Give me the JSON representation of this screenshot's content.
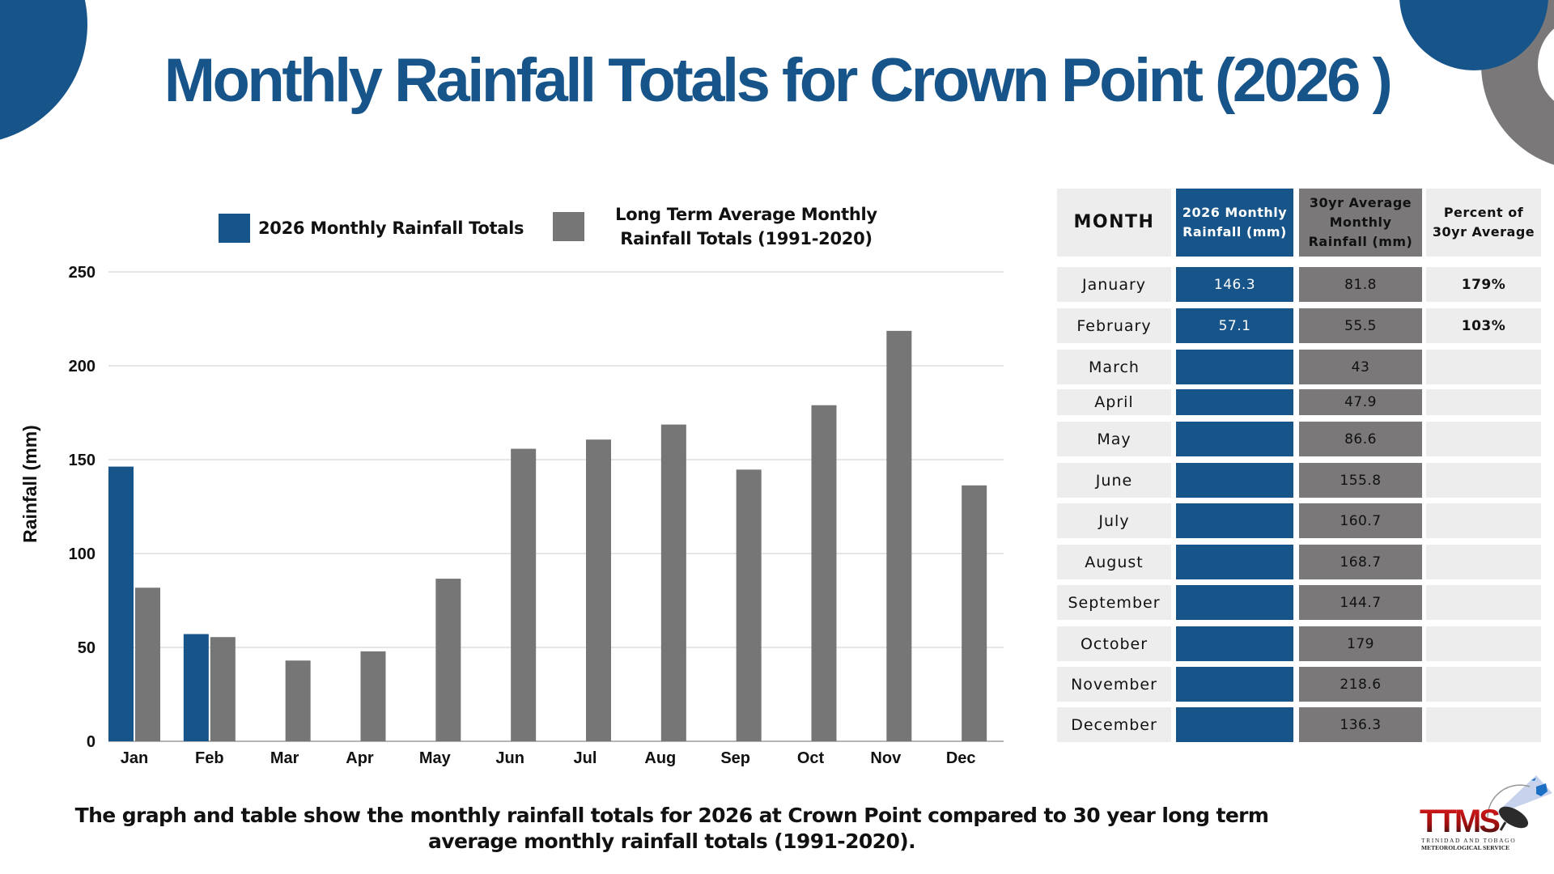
{
  "title": "Monthly Rainfall Totals for Crown Point (2026 )",
  "colors": {
    "brand_blue": "#16548a",
    "gray": "#767676",
    "table_gray": "#7a7879",
    "light_gray": "#ededed"
  },
  "chart_data": {
    "type": "bar",
    "title": "",
    "xlabel": "",
    "ylabel": "Rainfall  (mm)",
    "ylim": [
      0,
      250
    ],
    "yticks": [
      0,
      50,
      100,
      150,
      200,
      250
    ],
    "grid": true,
    "legend_position": "top",
    "categories": [
      "Jan",
      "Feb",
      "Mar",
      "Apr",
      "May",
      "Jun",
      "Jul",
      "Aug",
      "Sep",
      "Oct",
      "Nov",
      "Dec"
    ],
    "series": [
      {
        "name": "2026 Monthly Rainfall Totals",
        "color": "#16548a",
        "values": [
          146.3,
          57.1,
          null,
          null,
          null,
          null,
          null,
          null,
          null,
          null,
          null,
          null
        ]
      },
      {
        "name": "Long Term Average Monthly Rainfall Totals (1991-2020)",
        "color": "#767676",
        "values": [
          81.8,
          55.5,
          43,
          47.9,
          86.6,
          155.8,
          160.7,
          168.7,
          144.7,
          179,
          218.6,
          136.3
        ]
      }
    ]
  },
  "legend": {
    "item1": "2026 Monthly Rainfall Totals",
    "item2_line1": "Long Term Average Monthly",
    "item2_line2": "Rainfall Totals (1991-2020)"
  },
  "table": {
    "headers": {
      "month": "MONTH",
      "rain_2026_line1": "2026 Monthly",
      "rain_2026_line2": "Rainfall (mm)",
      "avg_line1": "30yr Average",
      "avg_line2": "Monthly",
      "avg_line3": "Rainfall (mm)",
      "pct_line1": "Percent of",
      "pct_line2": "30yr Average"
    },
    "rows": [
      {
        "month": "January",
        "rain_2026": "146.3",
        "avg": "81.8",
        "pct": "179%"
      },
      {
        "month": "February",
        "rain_2026": "57.1",
        "avg": "55.5",
        "pct": "103%"
      },
      {
        "month": "March",
        "rain_2026": "",
        "avg": "43",
        "pct": ""
      },
      {
        "month": "April",
        "rain_2026": "",
        "avg": "47.9",
        "pct": ""
      },
      {
        "month": "May",
        "rain_2026": "",
        "avg": "86.6",
        "pct": ""
      },
      {
        "month": "June",
        "rain_2026": "",
        "avg": "155.8",
        "pct": ""
      },
      {
        "month": "July",
        "rain_2026": "",
        "avg": "160.7",
        "pct": ""
      },
      {
        "month": "August",
        "rain_2026": "",
        "avg": "168.7",
        "pct": ""
      },
      {
        "month": "September",
        "rain_2026": "",
        "avg": "144.7",
        "pct": ""
      },
      {
        "month": "October",
        "rain_2026": "",
        "avg": "179",
        "pct": ""
      },
      {
        "month": "November",
        "rain_2026": "",
        "avg": "218.6",
        "pct": ""
      },
      {
        "month": "December",
        "rain_2026": "",
        "avg": "136.3",
        "pct": ""
      }
    ]
  },
  "footer": {
    "line1": "The graph and table show the monthly rainfall totals for 2026 at Crown Point compared to 30 year long term",
    "line2": "average monthly rainfall totals (1991-2020)."
  },
  "logo": {
    "mark": "TTMS",
    "line1": "TRINIDAD AND TOBAGO",
    "line2": "METEOROLOGICAL SERVICE"
  }
}
